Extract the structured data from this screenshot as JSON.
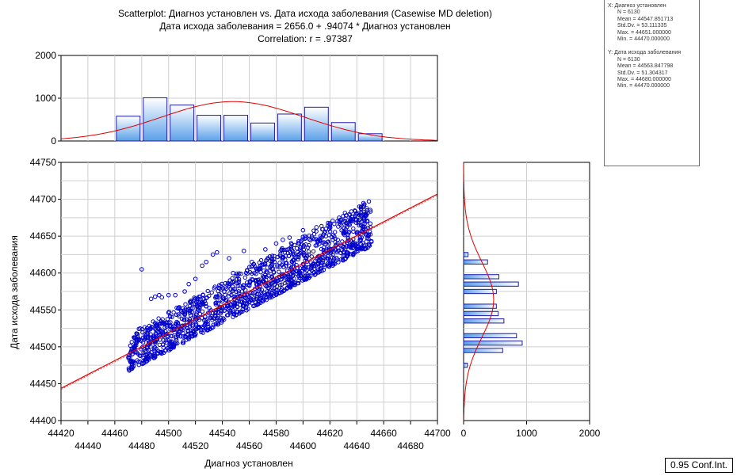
{
  "title": {
    "line1": "Scatterplot: Диагноз установлен vs. Дата исхода заболевания (Casewise MD deletion)",
    "line2": "Дата исхода заболевания = 2656.0 + .94074 * Диагноз установлен",
    "line3": "Correlation: r = .97387"
  },
  "stats": {
    "x": {
      "label": "X:  Диагноз установлен",
      "lines": [
        "N = 6130",
        "Mean = 44547.851713",
        "Std.Dv. = 53.111335",
        "Max. = 44651.000000",
        "Min. = 44470.000000"
      ]
    },
    "y": {
      "label": "Y:  Дата исхода заболевания",
      "lines": [
        "N = 6130",
        "Mean = 44563.847798",
        "Std.Dv. = 51.304317",
        "Max. = 44680.000000",
        "Min. = 44470.000000"
      ]
    }
  },
  "conf_label": "0.95 Conf.Int.",
  "colors": {
    "points": "#0000cc",
    "fit": "#e00000",
    "bar_border": "#1a1aaa",
    "bar_light": "#ffffff",
    "bar_dark": "#5aa0e8",
    "grid": "#cfcfcf"
  },
  "chart_data": {
    "type": "scatter",
    "xlabel": "Диагноз установлен",
    "ylabel": "Дата исхода заболевания",
    "xlim": [
      44420,
      44700
    ],
    "ylim": [
      44400,
      44750
    ],
    "xticks_lower": [
      "44420",
      "44460",
      "44500",
      "44540",
      "44580",
      "44620",
      "44660",
      "44700"
    ],
    "xticks_upper": [
      "44440",
      "44480",
      "44520",
      "44560",
      "44600",
      "44640",
      "44680"
    ],
    "yticks": [
      "44400",
      "44450",
      "44500",
      "44550",
      "44600",
      "44650",
      "44700",
      "44750"
    ],
    "regression": {
      "intercept": 2656.0,
      "slope": 0.94074,
      "r": 0.97387
    },
    "n": 6130,
    "x_range": [
      44470,
      44651
    ],
    "outliers": [
      [
        44480,
        44605
      ],
      [
        44487,
        44565
      ],
      [
        44490,
        44568
      ],
      [
        44493,
        44570
      ],
      [
        44495,
        44567
      ],
      [
        44500,
        44570
      ],
      [
        44505,
        44570
      ],
      [
        44515,
        44585
      ],
      [
        44520,
        44592
      ],
      [
        44525,
        44610
      ],
      [
        44528,
        44615
      ],
      [
        44533,
        44625
      ],
      [
        44536,
        44628
      ],
      [
        44545,
        44620
      ],
      [
        44556,
        44630
      ],
      [
        44572,
        44632
      ],
      [
        44580,
        44640
      ],
      [
        44585,
        44645
      ],
      [
        44590,
        44648
      ],
      [
        44600,
        44658
      ],
      [
        44610,
        44662
      ],
      [
        44620,
        44665
      ],
      [
        44628,
        44672
      ],
      [
        44632,
        44678
      ],
      [
        44640,
        44680
      ],
      [
        44512,
        44575
      ],
      [
        44548,
        44600
      ],
      [
        44562,
        44615
      ],
      [
        44597,
        44640
      ]
    ],
    "top_hist": {
      "ylim": [
        0,
        2000
      ],
      "yticks": [
        "0",
        "1000",
        "2000"
      ],
      "bins": [
        {
          "from": 44460,
          "to": 44480,
          "value": 580
        },
        {
          "from": 44480,
          "to": 44500,
          "value": 1010
        },
        {
          "from": 44500,
          "to": 44520,
          "value": 840
        },
        {
          "from": 44520,
          "to": 44540,
          "value": 600
        },
        {
          "from": 44540,
          "to": 44560,
          "value": 600
        },
        {
          "from": 44560,
          "to": 44580,
          "value": 420
        },
        {
          "from": 44580,
          "to": 44600,
          "value": 630
        },
        {
          "from": 44600,
          "to": 44620,
          "value": 790
        },
        {
          "from": 44620,
          "to": 44640,
          "value": 430
        },
        {
          "from": 44640,
          "to": 44660,
          "value": 170
        }
      ]
    },
    "side_hist": {
      "xlim": [
        0,
        2000
      ],
      "xticks": [
        "0",
        "1000",
        "2000"
      ],
      "bins": [
        {
          "from": 44470,
          "to": 44480,
          "value": 60
        },
        {
          "from": 44490,
          "to": 44500,
          "value": 620
        },
        {
          "from": 44500,
          "to": 44510,
          "value": 930
        },
        {
          "from": 44510,
          "to": 44520,
          "value": 840
        },
        {
          "from": 44520,
          "to": 44530,
          "value": 0
        },
        {
          "from": 44530,
          "to": 44540,
          "value": 640
        },
        {
          "from": 44540,
          "to": 44550,
          "value": 550
        },
        {
          "from": 44550,
          "to": 44560,
          "value": 520
        },
        {
          "from": 44560,
          "to": 44570,
          "value": 0
        },
        {
          "from": 44570,
          "to": 44580,
          "value": 520
        },
        {
          "from": 44580,
          "to": 44590,
          "value": 870
        },
        {
          "from": 44590,
          "to": 44600,
          "value": 560
        },
        {
          "from": 44600,
          "to": 44610,
          "value": 0
        },
        {
          "from": 44610,
          "to": 44620,
          "value": 380
        },
        {
          "from": 44620,
          "to": 44630,
          "value": 70
        }
      ]
    }
  }
}
